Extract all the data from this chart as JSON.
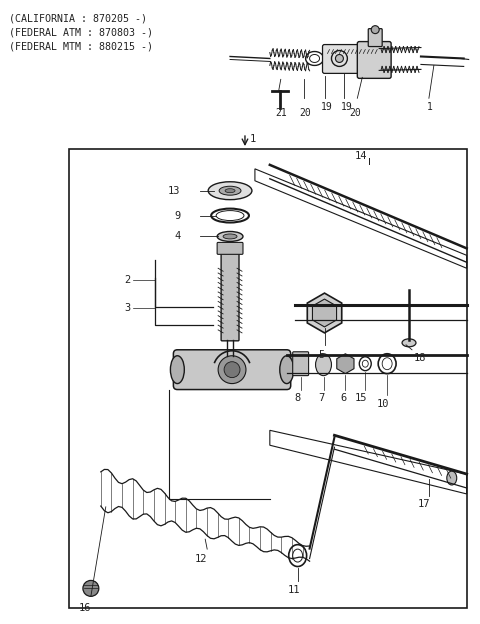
{
  "bg_color": "#ffffff",
  "line_color": "#1a1a1a",
  "label_color": "#222222",
  "header_text": [
    "(CALIFORNIA : 870205 -)",
    "(FEDERAL ATM : 870803 -)",
    "(FEDERAL MTM : 880215 -)"
  ],
  "font_size_header": 7.2,
  "font_size_label": 7.5
}
